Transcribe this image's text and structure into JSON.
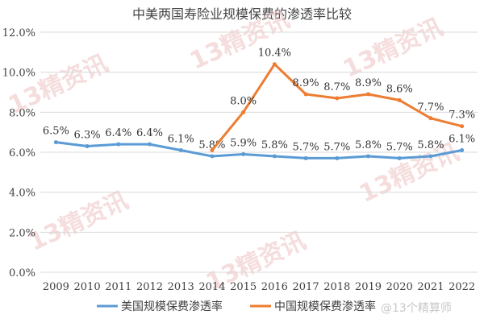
{
  "watermark": "13精资讯",
  "credit": "@13个精算师",
  "colors": {
    "us": "#5b9bd5",
    "cn": "#ed7d31",
    "grid": "#d9d9d9",
    "axis_text": "#404040",
    "label_text": "#333333"
  },
  "chart_data": {
    "type": "line",
    "title": "中美两国寿险业规模保费的渗透率比较",
    "xlabel": "",
    "ylabel": "",
    "ylim": [
      0,
      12
    ],
    "yticks": [
      "0.0%",
      "2.0%",
      "4.0%",
      "6.0%",
      "8.0%",
      "10.0%",
      "12.0%"
    ],
    "ytick_values": [
      0,
      2,
      4,
      6,
      8,
      10,
      12
    ],
    "grid": true,
    "legend_position": "bottom",
    "categories": [
      "2009",
      "2010",
      "2011",
      "2012",
      "2013",
      "2014",
      "2015",
      "2016",
      "2017",
      "2018",
      "2019",
      "2020",
      "2021",
      "2022"
    ],
    "series": [
      {
        "name": "美国规模保费渗透率",
        "color": "#5b9bd5",
        "values": [
          6.5,
          6.3,
          6.4,
          6.4,
          6.1,
          5.8,
          5.9,
          5.8,
          5.7,
          5.7,
          5.8,
          5.7,
          5.8,
          6.1
        ],
        "labels": [
          "6.5%",
          "6.3%",
          "6.4%",
          "6.4%",
          "6.1%",
          "5.8%",
          "5.9%",
          "5.8%",
          "5.7%",
          "5.7%",
          "5.8%",
          "5.7%",
          "5.8%",
          "6.1%"
        ]
      },
      {
        "name": "中国规模保费渗透率",
        "color": "#ed7d31",
        "values": [
          null,
          null,
          null,
          null,
          null,
          6.1,
          8.0,
          10.4,
          8.9,
          8.7,
          8.9,
          8.6,
          7.7,
          7.3
        ],
        "labels": [
          null,
          null,
          null,
          null,
          null,
          null,
          "8.0%",
          "10.4%",
          "8.9%",
          "8.7%",
          "8.9%",
          "8.6%",
          "7.7%",
          "7.3%"
        ]
      }
    ]
  }
}
